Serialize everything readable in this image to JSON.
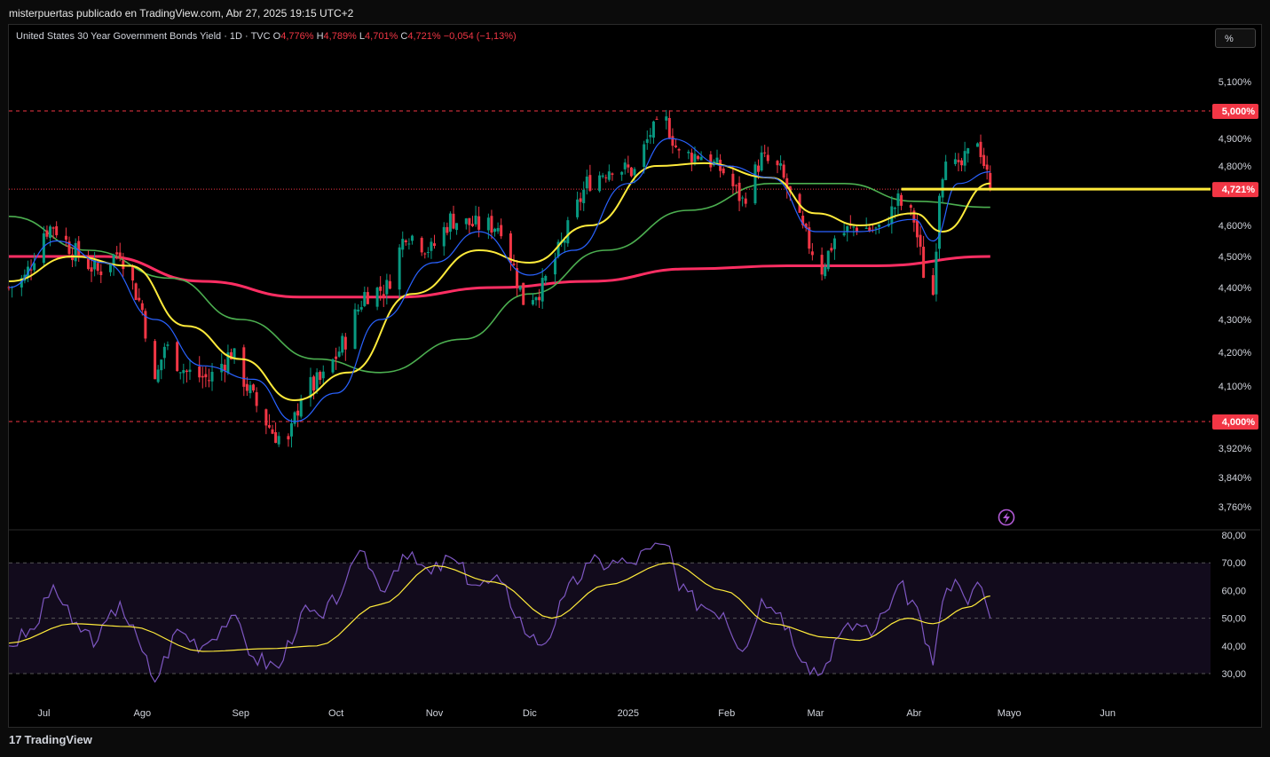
{
  "header": {
    "publisher": "misterpuertas publicado en TradingView.com, Abr 27, 2025 19:15 UTC+2"
  },
  "legend": {
    "symbol": "United States 30 Year Government Bonds Yield · 1D · TVC",
    "open_label": "O",
    "open": "4,776%",
    "high_label": "H",
    "high": "4,789%",
    "low_label": "L",
    "low": "4,701%",
    "close_label": "C",
    "close": "4,721%",
    "change": "−0,054 (−1,13%)"
  },
  "toolbar": {
    "scale_button": "%"
  },
  "footer": {
    "brand_logo": "17",
    "brand": "TradingView"
  },
  "colors": {
    "up": "#089981",
    "down": "#f23645",
    "ma_fast": "#2962ff",
    "ma_mid": "#ffeb3b",
    "ma_slow": "#4caf50",
    "ma_long": "#ff2e63",
    "rsi": "#7e57c2",
    "rsi_ma": "#ffeb3b",
    "level_line": "#f23645",
    "horizontal_ray": "#ffeb3b"
  },
  "chart_data": [
    {
      "type": "candlestick",
      "title": "United States 30 Year Government Bonds Yield",
      "timeframe": "1D",
      "y_axis_labels": [
        "5,100%",
        "5,000%",
        "4,900%",
        "4,800%",
        "4,721%",
        "4,600%",
        "4,500%",
        "4,400%",
        "4,300%",
        "4,200%",
        "4,100%",
        "4,000%",
        "3,920%",
        "3,840%",
        "3,760%"
      ],
      "ylim": [
        3.72,
        5.21
      ],
      "x_axis_labels": [
        "Jul",
        "Ago",
        "Sep",
        "Oct",
        "Nov",
        "Dic",
        "2025",
        "Feb",
        "Mar",
        "Abr",
        "Mayo",
        "Jun"
      ],
      "levels": [
        {
          "label": "5,000%",
          "value": 5.0
        },
        {
          "label": "4,000%",
          "value": 4.0
        }
      ],
      "last_price": {
        "label": "4,721%",
        "value": 4.721
      },
      "horizontal_ray": {
        "value": 4.721,
        "start": "2025-03-28"
      },
      "trend_points": [
        {
          "x": "2024-06-20",
          "y": 4.4
        },
        {
          "x": "2024-06-25",
          "y": 4.43
        },
        {
          "x": "2024-07-01",
          "y": 4.58
        },
        {
          "x": "2024-07-04",
          "y": 4.6
        },
        {
          "x": "2024-07-10",
          "y": 4.52
        },
        {
          "x": "2024-07-18",
          "y": 4.45
        },
        {
          "x": "2024-07-25",
          "y": 4.52
        },
        {
          "x": "2024-08-01",
          "y": 4.33
        },
        {
          "x": "2024-08-05",
          "y": 4.1
        },
        {
          "x": "2024-08-08",
          "y": 4.22
        },
        {
          "x": "2024-08-15",
          "y": 4.14
        },
        {
          "x": "2024-08-22",
          "y": 4.12
        },
        {
          "x": "2024-08-29",
          "y": 4.2
        },
        {
          "x": "2024-09-05",
          "y": 4.06
        },
        {
          "x": "2024-09-11",
          "y": 3.97
        },
        {
          "x": "2024-09-16",
          "y": 3.93
        },
        {
          "x": "2024-09-20",
          "y": 4.08
        },
        {
          "x": "2024-09-27",
          "y": 4.12
        },
        {
          "x": "2024-10-04",
          "y": 4.24
        },
        {
          "x": "2024-10-10",
          "y": 4.38
        },
        {
          "x": "2024-10-17",
          "y": 4.4
        },
        {
          "x": "2024-10-23",
          "y": 4.58
        },
        {
          "x": "2024-10-31",
          "y": 4.52
        },
        {
          "x": "2024-11-06",
          "y": 4.62
        },
        {
          "x": "2024-11-14",
          "y": 4.6
        },
        {
          "x": "2024-11-22",
          "y": 4.6
        },
        {
          "x": "2024-11-29",
          "y": 4.36
        },
        {
          "x": "2024-12-05",
          "y": 4.4
        },
        {
          "x": "2024-12-12",
          "y": 4.56
        },
        {
          "x": "2024-12-19",
          "y": 4.74
        },
        {
          "x": "2024-12-27",
          "y": 4.8
        },
        {
          "x": "2025-01-03",
          "y": 4.78
        },
        {
          "x": "2025-01-08",
          "y": 4.92
        },
        {
          "x": "2025-01-13",
          "y": 4.96
        },
        {
          "x": "2025-01-17",
          "y": 4.84
        },
        {
          "x": "2025-01-24",
          "y": 4.84
        },
        {
          "x": "2025-01-31",
          "y": 4.78
        },
        {
          "x": "2025-02-06",
          "y": 4.68
        },
        {
          "x": "2025-02-12",
          "y": 4.83
        },
        {
          "x": "2025-02-18",
          "y": 4.78
        },
        {
          "x": "2025-02-25",
          "y": 4.58
        },
        {
          "x": "2025-03-03",
          "y": 4.46
        },
        {
          "x": "2025-03-07",
          "y": 4.56
        },
        {
          "x": "2025-03-14",
          "y": 4.6
        },
        {
          "x": "2025-03-21",
          "y": 4.58
        },
        {
          "x": "2025-03-27",
          "y": 4.68
        },
        {
          "x": "2025-04-01",
          "y": 4.62
        },
        {
          "x": "2025-04-04",
          "y": 4.45
        },
        {
          "x": "2025-04-07",
          "y": 4.38
        },
        {
          "x": "2025-04-09",
          "y": 4.72
        },
        {
          "x": "2025-04-11",
          "y": 4.85
        },
        {
          "x": "2025-04-15",
          "y": 4.78
        },
        {
          "x": "2025-04-21",
          "y": 4.9
        },
        {
          "x": "2025-04-25",
          "y": 4.721
        }
      ],
      "moving_averages": {
        "fast": [
          {
            "x": "2024-06-20",
            "y": 4.4
          },
          {
            "x": "2024-07-05",
            "y": 4.55
          },
          {
            "x": "2024-07-20",
            "y": 4.48
          },
          {
            "x": "2024-08-05",
            "y": 4.3
          },
          {
            "x": "2024-08-20",
            "y": 4.16
          },
          {
            "x": "2024-09-05",
            "y": 4.12
          },
          {
            "x": "2024-09-18",
            "y": 4.0
          },
          {
            "x": "2024-10-01",
            "y": 4.08
          },
          {
            "x": "2024-10-15",
            "y": 4.3
          },
          {
            "x": "2024-11-01",
            "y": 4.48
          },
          {
            "x": "2024-11-15",
            "y": 4.58
          },
          {
            "x": "2024-12-01",
            "y": 4.44
          },
          {
            "x": "2024-12-15",
            "y": 4.52
          },
          {
            "x": "2025-01-01",
            "y": 4.74
          },
          {
            "x": "2025-01-14",
            "y": 4.9
          },
          {
            "x": "2025-02-01",
            "y": 4.8
          },
          {
            "x": "2025-02-15",
            "y": 4.76
          },
          {
            "x": "2025-03-01",
            "y": 4.58
          },
          {
            "x": "2025-03-15",
            "y": 4.58
          },
          {
            "x": "2025-04-01",
            "y": 4.62
          },
          {
            "x": "2025-04-07",
            "y": 4.55
          },
          {
            "x": "2025-04-15",
            "y": 4.74
          },
          {
            "x": "2025-04-25",
            "y": 4.78
          }
        ],
        "mid": [
          {
            "x": "2024-06-20",
            "y": 4.42
          },
          {
            "x": "2024-07-10",
            "y": 4.5
          },
          {
            "x": "2024-07-28",
            "y": 4.47
          },
          {
            "x": "2024-08-15",
            "y": 4.28
          },
          {
            "x": "2024-09-01",
            "y": 4.18
          },
          {
            "x": "2024-09-18",
            "y": 4.06
          },
          {
            "x": "2024-10-05",
            "y": 4.14
          },
          {
            "x": "2024-10-25",
            "y": 4.38
          },
          {
            "x": "2024-11-15",
            "y": 4.52
          },
          {
            "x": "2024-12-01",
            "y": 4.48
          },
          {
            "x": "2024-12-20",
            "y": 4.6
          },
          {
            "x": "2025-01-10",
            "y": 4.8
          },
          {
            "x": "2025-01-25",
            "y": 4.81
          },
          {
            "x": "2025-02-15",
            "y": 4.76
          },
          {
            "x": "2025-03-01",
            "y": 4.64
          },
          {
            "x": "2025-03-15",
            "y": 4.6
          },
          {
            "x": "2025-04-01",
            "y": 4.64
          },
          {
            "x": "2025-04-10",
            "y": 4.58
          },
          {
            "x": "2025-04-25",
            "y": 4.74
          }
        ],
        "slow": [
          {
            "x": "2024-06-20",
            "y": 4.63
          },
          {
            "x": "2024-07-15",
            "y": 4.52
          },
          {
            "x": "2024-08-10",
            "y": 4.43
          },
          {
            "x": "2024-09-01",
            "y": 4.3
          },
          {
            "x": "2024-09-25",
            "y": 4.18
          },
          {
            "x": "2024-10-15",
            "y": 4.14
          },
          {
            "x": "2024-11-10",
            "y": 4.24
          },
          {
            "x": "2024-12-01",
            "y": 4.38
          },
          {
            "x": "2024-12-25",
            "y": 4.52
          },
          {
            "x": "2025-01-20",
            "y": 4.65
          },
          {
            "x": "2025-02-15",
            "y": 4.74
          },
          {
            "x": "2025-03-10",
            "y": 4.74
          },
          {
            "x": "2025-04-01",
            "y": 4.68
          },
          {
            "x": "2025-04-25",
            "y": 4.66
          }
        ],
        "long": [
          {
            "x": "2024-06-20",
            "y": 4.5
          },
          {
            "x": "2024-07-20",
            "y": 4.5
          },
          {
            "x": "2024-08-20",
            "y": 4.42
          },
          {
            "x": "2024-09-20",
            "y": 4.37
          },
          {
            "x": "2024-10-20",
            "y": 4.37
          },
          {
            "x": "2024-11-20",
            "y": 4.4
          },
          {
            "x": "2024-12-20",
            "y": 4.42
          },
          {
            "x": "2025-01-20",
            "y": 4.46
          },
          {
            "x": "2025-02-20",
            "y": 4.47
          },
          {
            "x": "2025-03-20",
            "y": 4.47
          },
          {
            "x": "2025-04-25",
            "y": 4.5
          }
        ]
      }
    },
    {
      "type": "line",
      "title": "RSI",
      "y_axis_labels": [
        "80,00",
        "70,00",
        "60,00",
        "50,00",
        "40,00",
        "30,00"
      ],
      "ylim": [
        24,
        82
      ],
      "bands": [
        70,
        50,
        30
      ],
      "series": [
        {
          "values": [
            {
              "x": "2024-06-20",
              "y": 40
            },
            {
              "x": "2024-06-28",
              "y": 46
            },
            {
              "x": "2024-07-04",
              "y": 62
            },
            {
              "x": "2024-07-10",
              "y": 48
            },
            {
              "x": "2024-07-18",
              "y": 42
            },
            {
              "x": "2024-07-25",
              "y": 56
            },
            {
              "x": "2024-08-01",
              "y": 38
            },
            {
              "x": "2024-08-05",
              "y": 27
            },
            {
              "x": "2024-08-12",
              "y": 46
            },
            {
              "x": "2024-08-20",
              "y": 40
            },
            {
              "x": "2024-08-29",
              "y": 51
            },
            {
              "x": "2024-09-05",
              "y": 36
            },
            {
              "x": "2024-09-13",
              "y": 32
            },
            {
              "x": "2024-09-20",
              "y": 52
            },
            {
              "x": "2024-09-27",
              "y": 50
            },
            {
              "x": "2024-10-04",
              "y": 63
            },
            {
              "x": "2024-10-10",
              "y": 74
            },
            {
              "x": "2024-10-15",
              "y": 60
            },
            {
              "x": "2024-10-22",
              "y": 73
            },
            {
              "x": "2024-10-31",
              "y": 66
            },
            {
              "x": "2024-11-06",
              "y": 72
            },
            {
              "x": "2024-11-14",
              "y": 62
            },
            {
              "x": "2024-11-22",
              "y": 63
            },
            {
              "x": "2024-12-01",
              "y": 43
            },
            {
              "x": "2024-12-06",
              "y": 41
            },
            {
              "x": "2024-12-12",
              "y": 58
            },
            {
              "x": "2024-12-20",
              "y": 70
            },
            {
              "x": "2025-01-02",
              "y": 70
            },
            {
              "x": "2025-01-08",
              "y": 75
            },
            {
              "x": "2025-01-14",
              "y": 76
            },
            {
              "x": "2025-01-17",
              "y": 60
            },
            {
              "x": "2025-01-24",
              "y": 55
            },
            {
              "x": "2025-01-31",
              "y": 52
            },
            {
              "x": "2025-02-06",
              "y": 38
            },
            {
              "x": "2025-02-12",
              "y": 57
            },
            {
              "x": "2025-02-18",
              "y": 52
            },
            {
              "x": "2025-02-26",
              "y": 34
            },
            {
              "x": "2025-03-03",
              "y": 30
            },
            {
              "x": "2025-03-07",
              "y": 42
            },
            {
              "x": "2025-03-14",
              "y": 48
            },
            {
              "x": "2025-03-20",
              "y": 46
            },
            {
              "x": "2025-03-27",
              "y": 62
            },
            {
              "x": "2025-04-02",
              "y": 54
            },
            {
              "x": "2025-04-07",
              "y": 33
            },
            {
              "x": "2025-04-10",
              "y": 56
            },
            {
              "x": "2025-04-14",
              "y": 64
            },
            {
              "x": "2025-04-18",
              "y": 55
            },
            {
              "x": "2025-04-21",
              "y": 63
            },
            {
              "x": "2025-04-25",
              "y": 50
            }
          ]
        },
        {
          "values": [
            {
              "x": "2024-06-20",
              "y": 41
            },
            {
              "x": "2024-07-10",
              "y": 48
            },
            {
              "x": "2024-07-28",
              "y": 47
            },
            {
              "x": "2024-08-20",
              "y": 38
            },
            {
              "x": "2024-09-10",
              "y": 39
            },
            {
              "x": "2024-09-25",
              "y": 40
            },
            {
              "x": "2024-10-15",
              "y": 55
            },
            {
              "x": "2024-11-01",
              "y": 69
            },
            {
              "x": "2024-11-20",
              "y": 63
            },
            {
              "x": "2024-12-08",
              "y": 50
            },
            {
              "x": "2024-12-25",
              "y": 62
            },
            {
              "x": "2025-01-14",
              "y": 70
            },
            {
              "x": "2025-01-31",
              "y": 60
            },
            {
              "x": "2025-02-15",
              "y": 48
            },
            {
              "x": "2025-03-05",
              "y": 43
            },
            {
              "x": "2025-03-15",
              "y": 42
            },
            {
              "x": "2025-03-30",
              "y": 50
            },
            {
              "x": "2025-04-07",
              "y": 48
            },
            {
              "x": "2025-04-18",
              "y": 54
            },
            {
              "x": "2025-04-25",
              "y": 58
            }
          ]
        }
      ]
    }
  ]
}
